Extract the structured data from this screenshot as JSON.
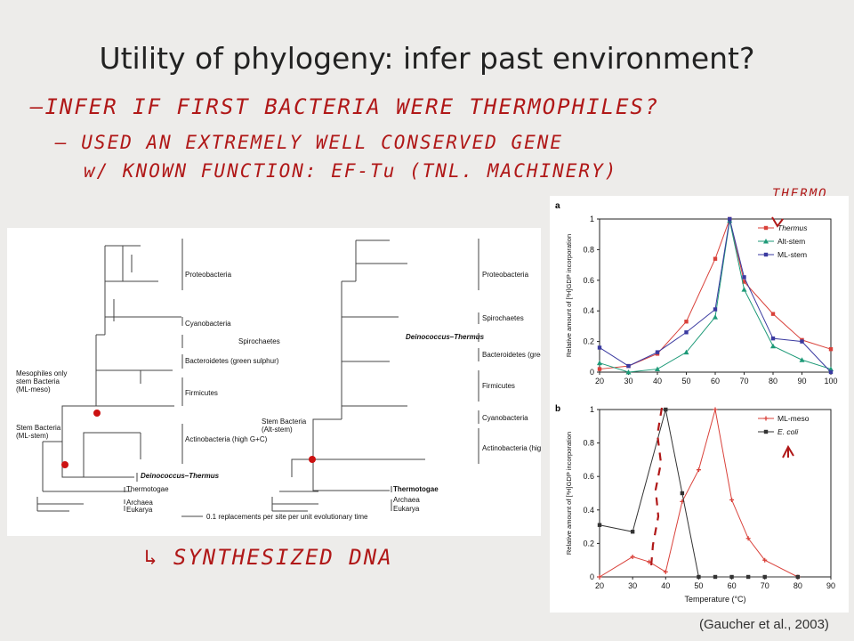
{
  "slide": {
    "title": "Utility of phylogeny: infer past environment?",
    "citation": "(Gaucher et al., 2003)"
  },
  "handwriting": {
    "line1": "—INFER IF FIRST BACTERIA WERE THERMOPHILES?",
    "line2": "– USED AN EXTREMELY WELL CONSERVED GENE",
    "line3": "w/ KNOWN FUNCTION: EF-Tu (TNL. MACHINERY)",
    "line4": "↳ SYNTHESIZED DNA",
    "thermo_note": "THERMO"
  },
  "trees": {
    "left": {
      "labels": [
        "Proteobacteria",
        "Cyanobacteria",
        "Spirochaetes",
        "Bacteroidetes (green sulphur)",
        "Firmicutes",
        "Actinobacteria (high G+C)",
        "Deinococcus–Thermus",
        "Thermotogae",
        "Archaea",
        "Eukarya"
      ],
      "node_labels": [
        "Mesophiles only",
        "stem Bacteria",
        "(ML-meso)",
        "Stem Bacteria",
        "(ML-stem)"
      ]
    },
    "right": {
      "labels": [
        "Proteobacteria",
        "Spirochaetes",
        "Deinococcus–Thermus",
        "Bacteroidetes (green sulphur)",
        "Firmicutes",
        "Cyanobacteria",
        "Actinobacteria (high G+C)",
        "Thermotogae",
        "Archaea",
        "Eukarya"
      ],
      "node_labels": [
        "Stem Bacteria",
        "(Alt-stem)"
      ]
    },
    "scale_label": "0.1 replacements per site per unit evolutionary time"
  },
  "chart_data": [
    {
      "panel": "a",
      "type": "line",
      "xlabel": "",
      "ylabel": "Relative amount of [³H]GDP incorporation",
      "xlim": [
        20,
        100
      ],
      "ylim": [
        0,
        1
      ],
      "xticks": [
        20,
        30,
        40,
        50,
        60,
        70,
        80,
        90,
        100
      ],
      "yticks": [
        0,
        0.2,
        0.4,
        0.6,
        0.8,
        1
      ],
      "legend": "top-right",
      "series": [
        {
          "name": "Thermus",
          "color": "#d9413a",
          "marker": "square",
          "x": [
            20,
            30,
            40,
            50,
            60,
            65,
            70,
            80,
            90,
            100
          ],
          "y": [
            0.02,
            0.04,
            0.12,
            0.33,
            0.74,
            1.0,
            0.59,
            0.38,
            0.21,
            0.15
          ]
        },
        {
          "name": "Alt-stem",
          "color": "#1e9a78",
          "marker": "triangle",
          "x": [
            20,
            30,
            40,
            50,
            60,
            65,
            70,
            80,
            90,
            100
          ],
          "y": [
            0.06,
            0.0,
            0.02,
            0.13,
            0.36,
            0.99,
            0.54,
            0.17,
            0.08,
            0.02
          ]
        },
        {
          "name": "ML-stem",
          "color": "#3a3aa0",
          "marker": "square",
          "x": [
            20,
            30,
            40,
            50,
            60,
            65,
            70,
            80,
            90,
            100
          ],
          "y": [
            0.16,
            0.04,
            0.13,
            0.26,
            0.41,
            1.0,
            0.62,
            0.22,
            0.2,
            0.0
          ]
        }
      ]
    },
    {
      "panel": "b",
      "type": "line",
      "xlabel": "Temperature (°C)",
      "ylabel": "Relative amount of [³H]GDP incorporation",
      "xlim": [
        20,
        90
      ],
      "ylim": [
        0,
        1
      ],
      "xticks": [
        20,
        30,
        40,
        50,
        60,
        70,
        80,
        90
      ],
      "yticks": [
        0,
        0.2,
        0.4,
        0.6,
        0.8,
        1
      ],
      "legend": "top-right",
      "series": [
        {
          "name": "ML-meso",
          "color": "#d9413a",
          "marker": "plus",
          "x": [
            20,
            30,
            35,
            40,
            45,
            50,
            55,
            60,
            65,
            70,
            80
          ],
          "y": [
            0.0,
            0.12,
            0.09,
            0.03,
            0.45,
            0.64,
            1.0,
            0.46,
            0.23,
            0.1,
            0.0
          ]
        },
        {
          "name": "E. coli",
          "color": "#333333",
          "marker": "square",
          "x": [
            20,
            30,
            40,
            45,
            50,
            55,
            60,
            65,
            70,
            80
          ],
          "y": [
            0.31,
            0.27,
            1.0,
            0.5,
            0.0,
            0.0,
            0.0,
            0.0,
            0.0,
            0.0
          ]
        }
      ]
    }
  ]
}
